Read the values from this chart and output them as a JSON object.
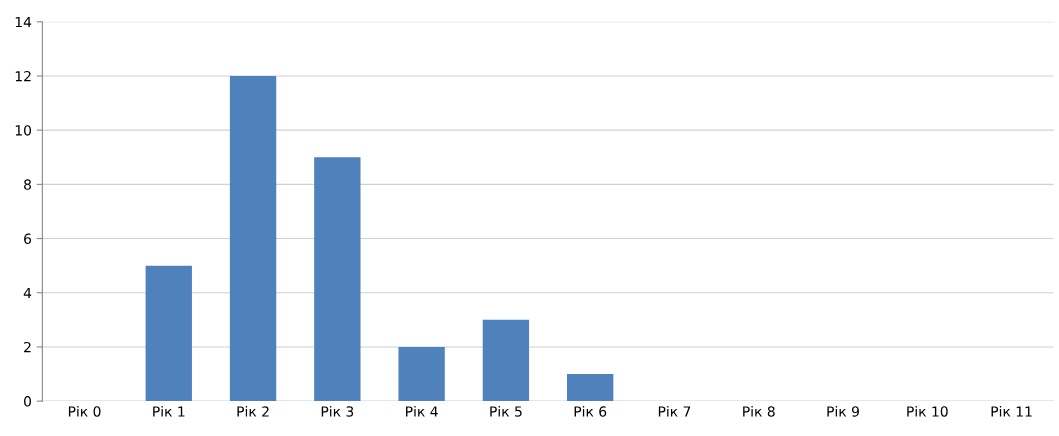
{
  "chart_data": {
    "type": "bar",
    "categories": [
      "Рік 0",
      "Рік 1",
      "Рік 2",
      "Рік 3",
      "Рік 4",
      "Рік 5",
      "Рік 6",
      "Рік 7",
      "Рік 8",
      "Рік 9",
      "Рік 10",
      "Рік 11"
    ],
    "values": [
      0,
      5,
      12,
      9,
      2,
      3,
      1,
      0,
      0,
      0,
      0,
      0
    ],
    "color": "#4f81bd",
    "ylim": [
      0,
      14
    ],
    "yticks": [
      0,
      2,
      4,
      6,
      8,
      10,
      12,
      14
    ],
    "grid": "y"
  }
}
